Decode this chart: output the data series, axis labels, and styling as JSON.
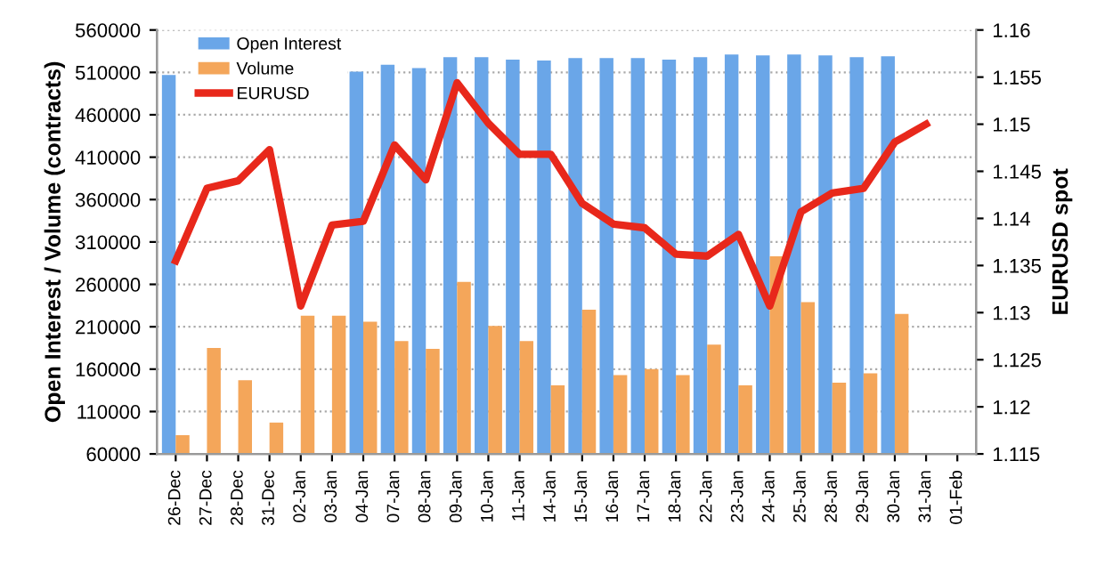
{
  "chart_data": {
    "type": "bar",
    "categories": [
      "26-Dec",
      "27-Dec",
      "28-Dec",
      "31-Dec",
      "02-Jan",
      "03-Jan",
      "04-Jan",
      "07-Jan",
      "08-Jan",
      "09-Jan",
      "10-Jan",
      "11-Jan",
      "14-Jan",
      "15-Jan",
      "16-Jan",
      "17-Jan",
      "18-Jan",
      "22-Jan",
      "23-Jan",
      "24-Jan",
      "25-Jan",
      "28-Jan",
      "29-Jan",
      "30-Jan",
      "31-Jan",
      "01-Feb"
    ],
    "series": [
      {
        "name": "Open Interest",
        "color": "#6aa6e8",
        "values": [
          507000,
          null,
          null,
          null,
          null,
          null,
          511000,
          519000,
          515000,
          528000,
          528000,
          525000,
          524000,
          527000,
          527000,
          527000,
          525000,
          528000,
          531000,
          530000,
          531000,
          530000,
          528000,
          529000,
          null,
          null
        ]
      },
      {
        "name": "Volume",
        "color": "#f4a65a",
        "values": [
          82000,
          185000,
          147000,
          97000,
          223000,
          223000,
          216000,
          193000,
          184000,
          263000,
          211000,
          193000,
          141000,
          230000,
          153000,
          160000,
          153000,
          189000,
          141000,
          293000,
          239000,
          144000,
          155000,
          225000,
          null,
          null
        ]
      },
      {
        "name": "EURUSD",
        "type": "line",
        "axis": "y2",
        "color": "#e8281b",
        "values": [
          1.1355,
          1.1432,
          1.144,
          1.1473,
          1.1307,
          1.1393,
          1.1397,
          1.1478,
          1.1441,
          1.1544,
          1.1501,
          1.1468,
          1.1468,
          1.1416,
          1.1394,
          1.139,
          1.1362,
          1.136,
          1.1383,
          1.1307,
          1.1407,
          1.1427,
          1.1432,
          1.1481,
          1.15,
          null
        ]
      }
    ],
    "ylabel": "Open Interest / Volume (contracts)",
    "y2label": "EURUSD spot",
    "ylim": [
      60000,
      560000
    ],
    "yticks": [
      60000,
      110000,
      160000,
      210000,
      260000,
      310000,
      360000,
      410000,
      460000,
      510000,
      560000
    ],
    "y2lim": [
      1.115,
      1.16
    ],
    "y2ticks": [
      {
        "value": 1.115,
        "label": "1.115"
      },
      {
        "value": 1.12,
        "label": "1.12"
      },
      {
        "value": 1.125,
        "label": "1.125"
      },
      {
        "value": 1.13,
        "label": "1.13"
      },
      {
        "value": 1.135,
        "label": "1.135"
      },
      {
        "value": 1.14,
        "label": "1.14"
      },
      {
        "value": 1.145,
        "label": "1.145"
      },
      {
        "value": 1.15,
        "label": "1.15"
      },
      {
        "value": 1.155,
        "label": "1.155"
      },
      {
        "value": 1.16,
        "label": "1.16"
      }
    ],
    "grid": "y",
    "legend": "top left",
    "marker": "none",
    "line_style": "solid"
  }
}
